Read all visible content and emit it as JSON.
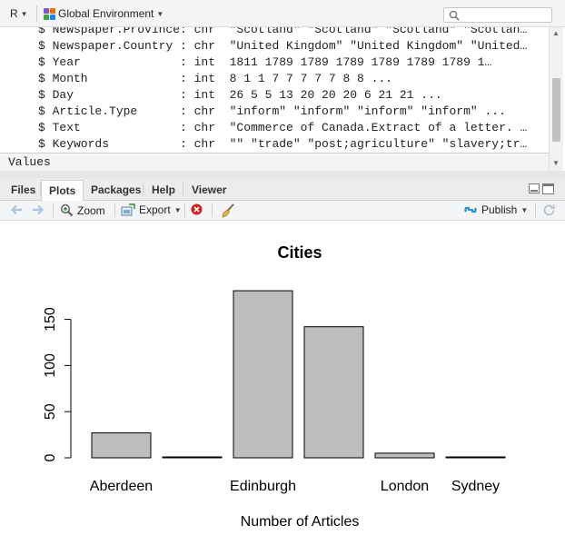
{
  "env_toolbar": {
    "language": "R",
    "environment": "Global Environment",
    "search_placeholder": ""
  },
  "env_rows": [
    "$ Newspaper.Province: chr  \"Scotland\" \"Scotland\" \"Scotland\" \"Scotlan…",
    "$ Newspaper.Country : chr  \"United Kingdom\" \"United Kingdom\" \"United…",
    "$ Year              : int  1811 1789 1789 1789 1789 1789 1789 1…",
    "$ Month             : int  8 1 1 7 7 7 7 7 8 8 ...",
    "$ Day               : int  26 5 5 13 20 20 20 6 21 21 ...",
    "$ Article.Type      : chr  \"inform\" \"inform\" \"inform\" \"inform\" ...",
    "$ Text              : chr  \"Commerce of Canada.Extract of a letter. …",
    "$ Keywords          : chr  \"\" \"trade\" \"post;agriculture\" \"slavery;tr…"
  ],
  "env_values_label": "Values",
  "tabs": [
    "Files",
    "Plots",
    "Packages",
    "Help",
    "Viewer"
  ],
  "active_tab": "Plots",
  "plot_toolbar": {
    "zoom": "Zoom",
    "export": "Export",
    "publish": "Publish"
  },
  "colors": {
    "bar_fill": "#bebebe",
    "bar_stroke": "#000000",
    "publish_icon": "#2a8fd4",
    "delete_icon": "#d11f1f"
  },
  "chart_data": {
    "type": "bar",
    "title": "Cities",
    "xlabel": "Number of Articles",
    "ylabel": "",
    "categories": [
      "Aberdeen",
      "",
      "Edinburgh",
      "",
      "London",
      "Sydney"
    ],
    "bar_labels_shown": [
      "Aberdeen",
      "Edinburgh",
      "London",
      "Sydney"
    ],
    "values": [
      27,
      1,
      181,
      142,
      5,
      1
    ],
    "yticks": [
      0,
      50,
      100,
      150
    ],
    "ylim": [
      0,
      185
    ]
  }
}
